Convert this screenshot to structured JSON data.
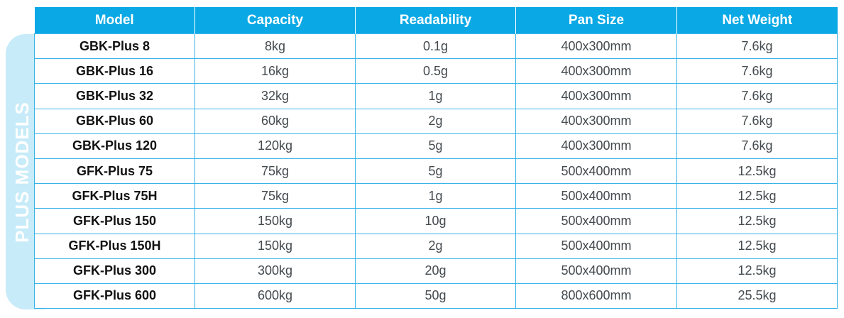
{
  "side_label": "PLUS MODELS",
  "colors": {
    "header_bg": "#0aa9e6",
    "side_tab_bg": "#c7ebf8",
    "cell_border": "#3ab4e8"
  },
  "table": {
    "headers": [
      "Model",
      "Capacity",
      "Readability",
      "Pan Size",
      "Net Weight"
    ],
    "rows": [
      [
        "GBK-Plus 8",
        "8kg",
        "0.1g",
        "400x300mm",
        "7.6kg"
      ],
      [
        "GBK-Plus 16",
        "16kg",
        "0.5g",
        "400x300mm",
        "7.6kg"
      ],
      [
        "GBK-Plus 32",
        "32kg",
        "1g",
        "400x300mm",
        "7.6kg"
      ],
      [
        "GBK-Plus 60",
        "60kg",
        "2g",
        "400x300mm",
        "7.6kg"
      ],
      [
        "GBK-Plus 120",
        "120kg",
        "5g",
        "400x300mm",
        "7.6kg"
      ],
      [
        "GFK-Plus 75",
        "75kg",
        "5g",
        "500x400mm",
        "12.5kg"
      ],
      [
        "GFK-Plus 75H",
        "75kg",
        "1g",
        "500x400mm",
        "12.5kg"
      ],
      [
        "GFK-Plus 150",
        "150kg",
        "10g",
        "500x400mm",
        "12.5kg"
      ],
      [
        "GFK-Plus 150H",
        "150kg",
        "2g",
        "500x400mm",
        "12.5kg"
      ],
      [
        "GFK-Plus 300",
        "300kg",
        "20g",
        "500x400mm",
        "12.5kg"
      ],
      [
        "GFK-Plus 600",
        "600kg",
        "50g",
        "800x600mm",
        "25.5kg"
      ]
    ]
  }
}
